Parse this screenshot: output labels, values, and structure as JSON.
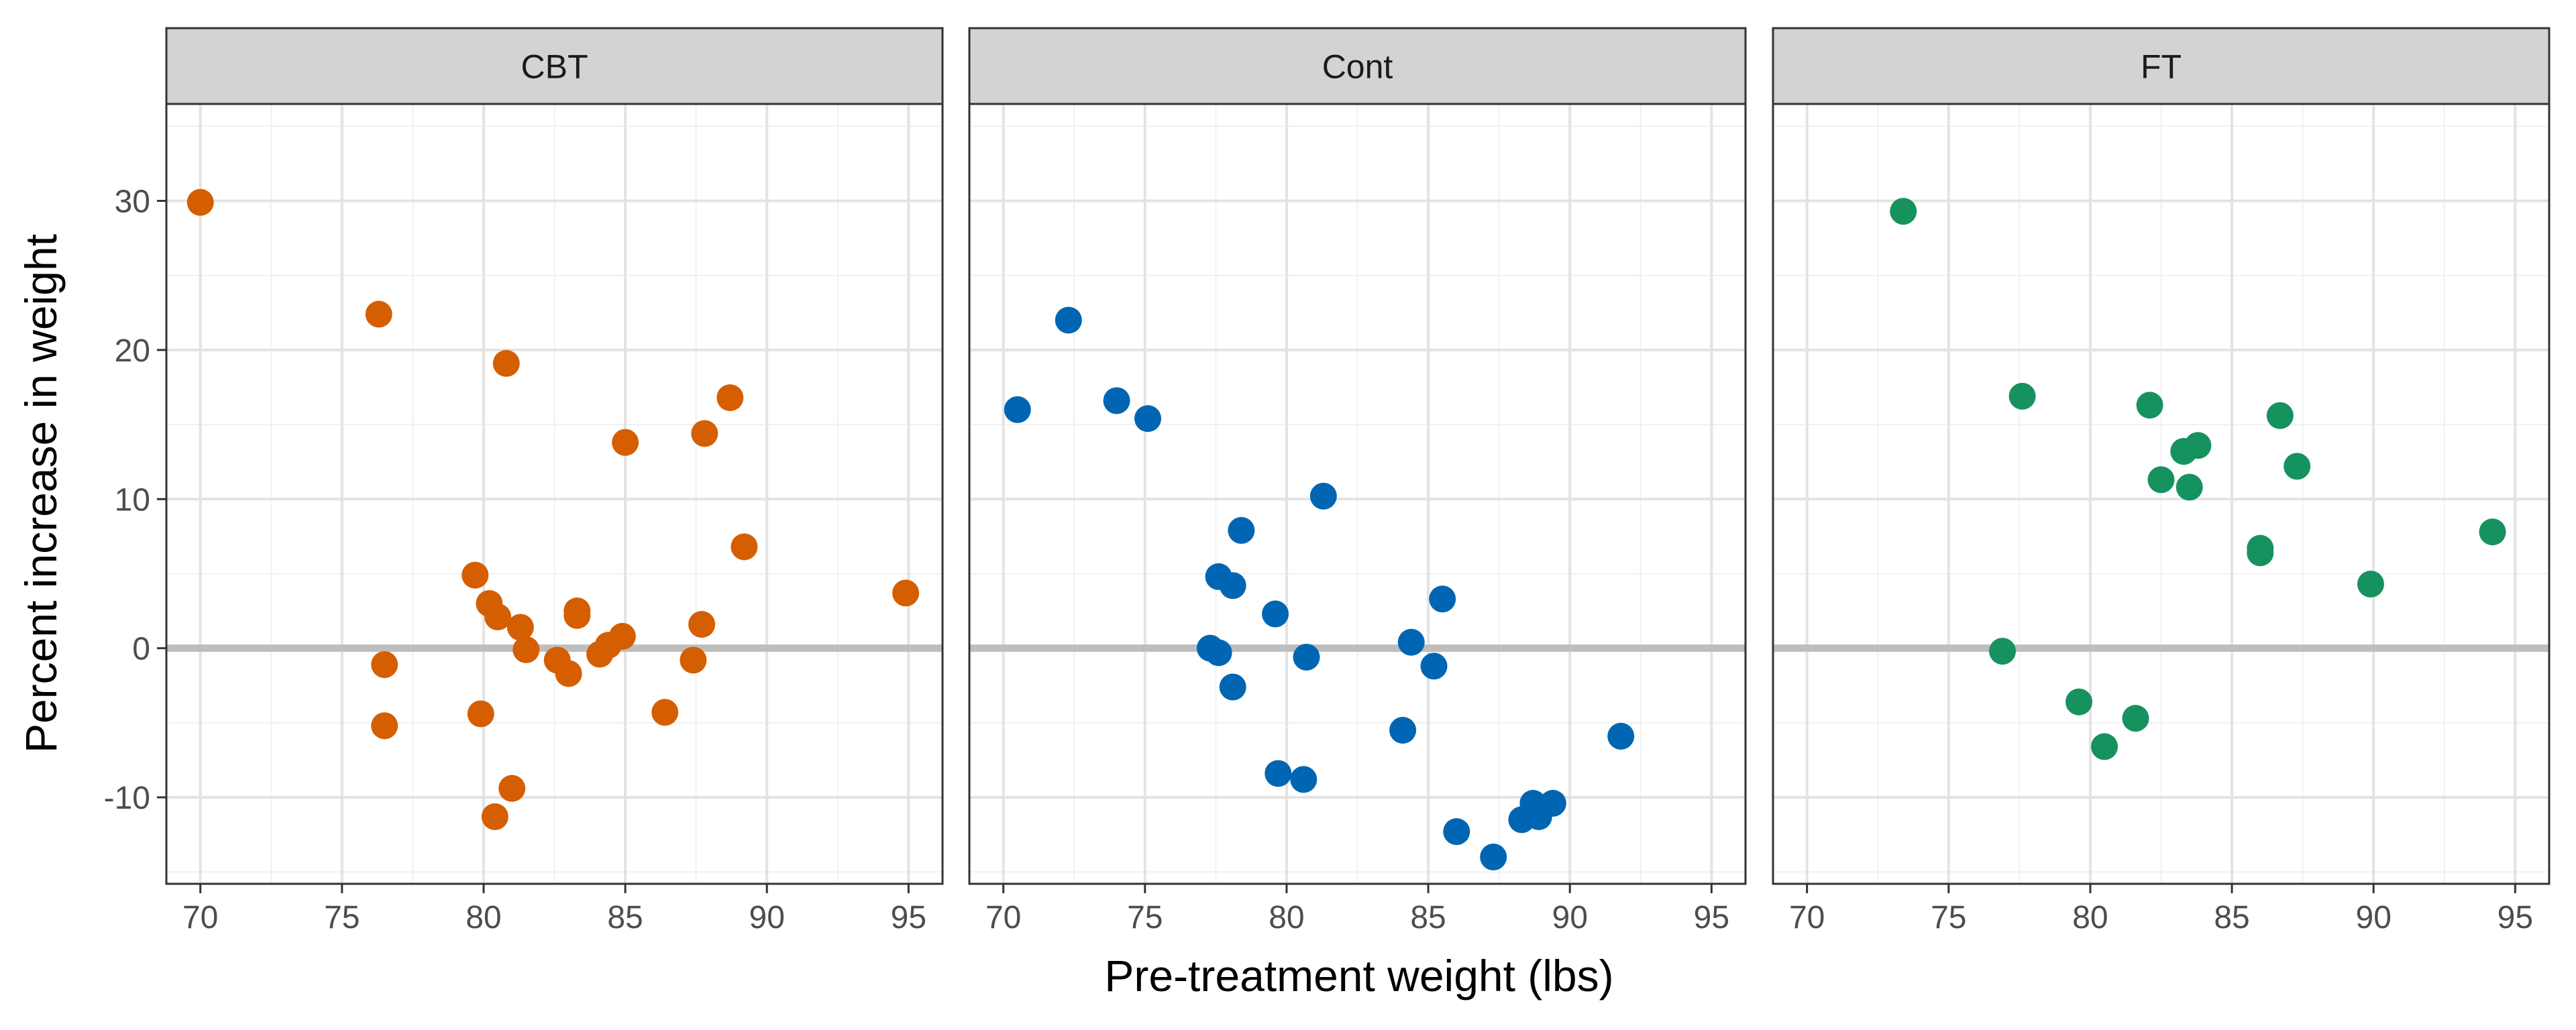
{
  "chart_data": {
    "type": "scatter",
    "xlabel": "Pre-treatment weight (lbs)",
    "ylabel": "Percent increase in weight",
    "xlim": [
      68.8,
      96.2
    ],
    "ylim": [
      -15.8,
      36.5
    ],
    "x_ticks": [
      70,
      75,
      80,
      85,
      90,
      95
    ],
    "y_ticks": [
      -10,
      0,
      10,
      20,
      30
    ],
    "grid": true,
    "reference_line_y": 0,
    "facets": [
      {
        "label": "CBT",
        "color": "#D55E00",
        "points": [
          {
            "x": 70.0,
            "y": 29.9
          },
          {
            "x": 76.3,
            "y": 22.4
          },
          {
            "x": 80.8,
            "y": 19.1
          },
          {
            "x": 88.7,
            "y": 16.8
          },
          {
            "x": 87.8,
            "y": 14.4
          },
          {
            "x": 85.0,
            "y": 13.8
          },
          {
            "x": 89.2,
            "y": 6.8
          },
          {
            "x": 79.7,
            "y": 4.9
          },
          {
            "x": 94.9,
            "y": 3.7
          },
          {
            "x": 80.2,
            "y": 3.0
          },
          {
            "x": 83.3,
            "y": 2.5
          },
          {
            "x": 80.5,
            "y": 2.1
          },
          {
            "x": 83.3,
            "y": 2.2
          },
          {
            "x": 87.7,
            "y": 1.6
          },
          {
            "x": 81.3,
            "y": 1.4
          },
          {
            "x": 84.9,
            "y": 0.8
          },
          {
            "x": 84.4,
            "y": 0.2
          },
          {
            "x": 81.5,
            "y": -0.1
          },
          {
            "x": 84.1,
            "y": -0.4
          },
          {
            "x": 82.6,
            "y": -0.8
          },
          {
            "x": 87.4,
            "y": -0.8
          },
          {
            "x": 76.5,
            "y": -1.1
          },
          {
            "x": 83.0,
            "y": -1.7
          },
          {
            "x": 79.9,
            "y": -4.4
          },
          {
            "x": 86.4,
            "y": -4.3
          },
          {
            "x": 76.5,
            "y": -5.2
          },
          {
            "x": 81.0,
            "y": -9.4
          },
          {
            "x": 80.4,
            "y": -11.3
          }
        ]
      },
      {
        "label": "Cont",
        "color": "#0066B3",
        "points": [
          {
            "x": 72.3,
            "y": 22.0
          },
          {
            "x": 74.0,
            "y": 16.6
          },
          {
            "x": 70.5,
            "y": 16.0
          },
          {
            "x": 75.1,
            "y": 15.4
          },
          {
            "x": 81.3,
            "y": 10.2
          },
          {
            "x": 78.4,
            "y": 7.9
          },
          {
            "x": 77.6,
            "y": 4.8
          },
          {
            "x": 78.1,
            "y": 4.2
          },
          {
            "x": 85.5,
            "y": 3.3
          },
          {
            "x": 79.6,
            "y": 2.3
          },
          {
            "x": 84.4,
            "y": 0.4
          },
          {
            "x": 77.3,
            "y": 0.0
          },
          {
            "x": 77.6,
            "y": -0.3
          },
          {
            "x": 80.7,
            "y": -0.6
          },
          {
            "x": 85.2,
            "y": -1.2
          },
          {
            "x": 78.1,
            "y": -2.6
          },
          {
            "x": 84.1,
            "y": -5.5
          },
          {
            "x": 91.8,
            "y": -5.9
          },
          {
            "x": 79.7,
            "y": -8.4
          },
          {
            "x": 80.6,
            "y": -8.8
          },
          {
            "x": 89.4,
            "y": -10.4
          },
          {
            "x": 88.7,
            "y": -10.4
          },
          {
            "x": 88.9,
            "y": -11.3
          },
          {
            "x": 88.3,
            "y": -11.5
          },
          {
            "x": 86.0,
            "y": -12.3
          },
          {
            "x": 87.3,
            "y": -14.0
          }
        ]
      },
      {
        "label": "FT",
        "color": "#16925F",
        "points": [
          {
            "x": 73.4,
            "y": 29.3
          },
          {
            "x": 77.6,
            "y": 16.9
          },
          {
            "x": 82.1,
            "y": 16.3
          },
          {
            "x": 86.7,
            "y": 15.6
          },
          {
            "x": 83.8,
            "y": 13.6
          },
          {
            "x": 83.3,
            "y": 13.2
          },
          {
            "x": 87.3,
            "y": 12.2
          },
          {
            "x": 82.5,
            "y": 11.3
          },
          {
            "x": 83.5,
            "y": 10.8
          },
          {
            "x": 94.2,
            "y": 7.8
          },
          {
            "x": 86.0,
            "y": 6.7
          },
          {
            "x": 86.0,
            "y": 6.4
          },
          {
            "x": 89.9,
            "y": 4.3
          },
          {
            "x": 76.9,
            "y": -0.2
          },
          {
            "x": 79.6,
            "y": -3.6
          },
          {
            "x": 81.6,
            "y": -4.7
          },
          {
            "x": 80.5,
            "y": -6.6
          }
        ]
      }
    ]
  }
}
